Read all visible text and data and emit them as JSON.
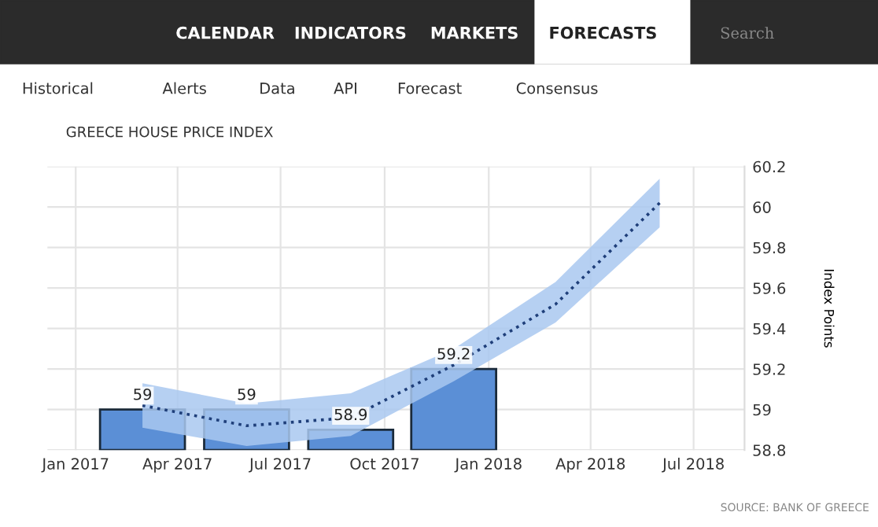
{
  "chart_data": {
    "type": "bar",
    "title": "GREECE HOUSE PRICE INDEX",
    "ylabel": "Index Points",
    "x": [
      "2017-03-01",
      "2017-06-01",
      "2017-09-01",
      "2017-12-01"
    ],
    "series": [
      {
        "color": "#5b8fd6",
        "values": [
          59,
          59,
          58.9,
          59.2
        ],
        "value_labels": [
          "59",
          "59",
          "58.9",
          "59.2"
        ]
      },
      {
        "type": "line",
        "color": "#1f3f7a",
        "line_style": "dotted",
        "x": [
          "2017-03-01",
          "2017-06-01",
          "2017-09-01",
          "2017-12-01",
          "2018-03-01",
          "2018-06-01"
        ],
        "values": [
          59.02,
          58.92,
          58.96,
          59.22,
          59.52,
          60.02
        ],
        "lower": [
          58.91,
          58.82,
          58.87,
          59.14,
          59.43,
          59.9
        ],
        "upper": [
          59.13,
          59.03,
          59.08,
          59.3,
          59.63,
          60.14
        ]
      }
    ],
    "xlim": [
      "2016-12-07",
      "2018-08-15"
    ],
    "xticks": [
      {
        "value": "2017-01-01",
        "label": "Jan 2017"
      },
      {
        "value": "2017-04-01",
        "label": "Apr 2017"
      },
      {
        "value": "2017-07-01",
        "label": "Jul 2017"
      },
      {
        "value": "2017-10-01",
        "label": "Oct 2017"
      },
      {
        "value": "2018-01-01",
        "label": "Jan 2018"
      },
      {
        "value": "2018-04-01",
        "label": "Apr 2018"
      },
      {
        "value": "2018-07-01",
        "label": "Jul 2018"
      }
    ],
    "ylim": [
      58.8,
      60.2
    ],
    "yticks": [
      58.8,
      59,
      59.2,
      59.4,
      59.6,
      59.8,
      60,
      60.2
    ],
    "grid": true,
    "annotations": [
      "CALENDAR",
      "INDICATORS",
      "MARKETS",
      "FORECASTS",
      "Search",
      "Historical",
      "Alerts",
      "Data",
      "API",
      "Forecast",
      "Consensus",
      "SOURCE: BANK OF GREECE"
    ]
  }
}
